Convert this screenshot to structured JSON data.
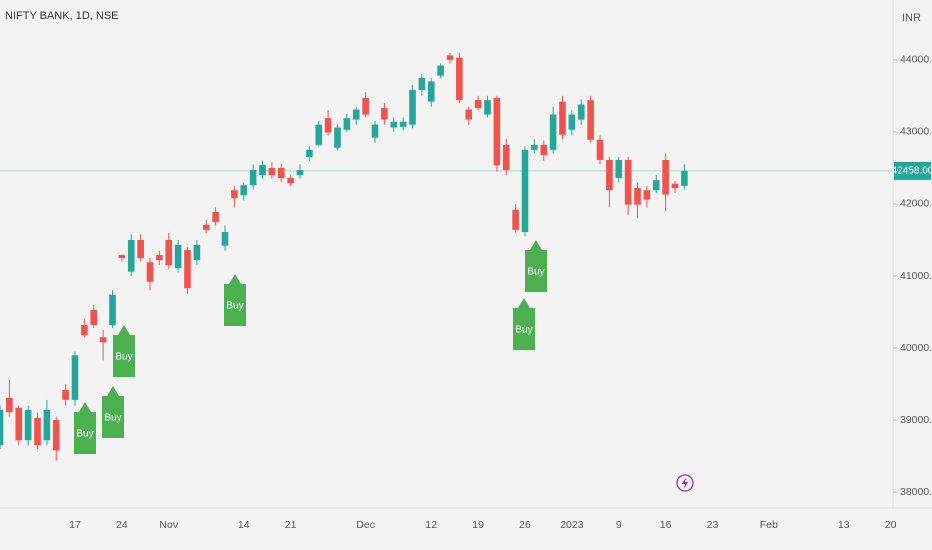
{
  "chart_data": {
    "type": "candlestick",
    "title": "NIFTY BANK, 1D, NSE",
    "y_unit": "INR",
    "categories": [
      null,
      null,
      null,
      null,
      null,
      null,
      null,
      null,
      "17",
      null,
      null,
      null,
      null,
      "24",
      null,
      null,
      null,
      null,
      "Nov",
      null,
      null,
      null,
      null,
      null,
      null,
      null,
      "14",
      null,
      null,
      null,
      null,
      "21",
      null,
      null,
      null,
      null,
      null,
      null,
      null,
      "Dec",
      null,
      null,
      null,
      null,
      null,
      null,
      "12",
      null,
      null,
      null,
      null,
      "19",
      null,
      null,
      null,
      null,
      "26",
      null,
      null,
      null,
      null,
      "2023",
      null,
      null,
      null,
      null,
      "9",
      null,
      null,
      null,
      null,
      "16",
      null,
      null,
      null,
      null,
      "23",
      null,
      null,
      null,
      null,
      null,
      "Feb",
      null,
      null,
      null,
      null,
      null,
      null,
      null,
      "13",
      null,
      null,
      null,
      null,
      "20"
    ],
    "open": [
      38650,
      39310,
      39170,
      38720,
      39030,
      38720,
      39000,
      39420,
      39280,
      40320,
      40530,
      40150,
      40320,
      41290,
      41060,
      41500,
      41190,
      41290,
      41500,
      41110,
      41360,
      41220,
      41710,
      41890,
      41420,
      42190,
      42120,
      42260,
      42400,
      42500,
      42500,
      42360,
      42400,
      42650,
      42820,
      43190,
      42780,
      43030,
      43170,
      43470,
      42920,
      43330,
      43060,
      43070,
      43100,
      43580,
      43420,
      43780,
      44060,
      44030,
      43310,
      43440,
      43240,
      43470,
      42820,
      41920,
      41610,
      42750,
      42820,
      42750,
      43420,
      43030,
      43170,
      43440,
      42890,
      42610,
      42360,
      42610,
      42220,
      42190,
      42190,
      42610,
      42280,
      42250,
      null,
      null,
      null,
      null,
      null,
      null,
      null,
      null,
      null,
      null,
      null,
      null,
      null,
      null,
      null,
      null,
      null,
      null,
      null,
      null,
      null,
      null
    ],
    "high": [
      39200,
      39560,
      39200,
      39200,
      39100,
      39280,
      39050,
      39500,
      39950,
      40400,
      40600,
      40250,
      40800,
      41300,
      41580,
      41580,
      41250,
      41350,
      41600,
      41500,
      41400,
      41500,
      41780,
      41950,
      41700,
      42250,
      42300,
      42550,
      42600,
      42580,
      42560,
      42400,
      42550,
      42800,
      43150,
      43300,
      43100,
      43250,
      43350,
      43550,
      43150,
      43400,
      43200,
      43200,
      43650,
      43800,
      43750,
      43950,
      44100,
      44100,
      43350,
      43500,
      43500,
      43500,
      42900,
      42000,
      42800,
      42900,
      42880,
      43350,
      43500,
      43300,
      43450,
      43500,
      42950,
      42650,
      42650,
      42650,
      42300,
      42250,
      42400,
      42700,
      42320,
      42550,
      null,
      null,
      null,
      null,
      null,
      null,
      null,
      null,
      null,
      null,
      null,
      null,
      null,
      null,
      null,
      null,
      null,
      null,
      null,
      null,
      null,
      null
    ],
    "low": [
      38600,
      39050,
      38650,
      38650,
      38600,
      38650,
      38440,
      39200,
      39200,
      40150,
      40280,
      39830,
      40280,
      41200,
      41000,
      41200,
      40800,
      41150,
      41100,
      41050,
      40750,
      41150,
      41600,
      41700,
      41350,
      41950,
      42050,
      42200,
      42350,
      42350,
      42300,
      42250,
      42350,
      42600,
      42800,
      42950,
      42750,
      43000,
      43100,
      43200,
      42850,
      43100,
      43000,
      43020,
      43050,
      43500,
      43350,
      43750,
      43950,
      43400,
      43100,
      43300,
      43200,
      42450,
      42400,
      41600,
      41550,
      42700,
      42600,
      42700,
      42900,
      42950,
      43100,
      42850,
      42550,
      41950,
      42300,
      41850,
      41800,
      41950,
      42150,
      41900,
      42150,
      42200,
      null,
      null,
      null,
      null,
      null,
      null,
      null,
      null,
      null,
      null,
      null,
      null,
      null,
      null,
      null,
      null,
      null,
      null,
      null,
      null,
      null,
      null
    ],
    "close": [
      39140,
      39110,
      38720,
      39140,
      38650,
      39140,
      38580,
      39280,
      39900,
      40180,
      40320,
      40080,
      40740,
      41250,
      41500,
      41250,
      40920,
      41220,
      41150,
      41430,
      40830,
      41430,
      41640,
      41750,
      41610,
      42080,
      42260,
      42470,
      42540,
      42400,
      42360,
      42290,
      42470,
      42750,
      43100,
      42990,
      43060,
      43190,
      43310,
      43240,
      43100,
      43170,
      43140,
      43140,
      43580,
      43750,
      43700,
      43920,
      44000,
      43440,
      43170,
      43330,
      43440,
      42540,
      42470,
      41640,
      42750,
      42820,
      42680,
      43240,
      42960,
      43240,
      43380,
      42890,
      42610,
      42190,
      42610,
      41990,
      41990,
      42060,
      42330,
      42130,
      42220,
      42458,
      null,
      null,
      null,
      null,
      null,
      null,
      null,
      null,
      null,
      null,
      null,
      null,
      null,
      null,
      null,
      null,
      null,
      null,
      null,
      null,
      null,
      null
    ],
    "up_color": "#26a69a",
    "down_color": "#ef5350",
    "ylim": [
      37780,
      44830
    ],
    "yticks": [
      {
        "value": 38000,
        "label": "38000.00"
      },
      {
        "value": 39000,
        "label": "39000.00"
      },
      {
        "value": 40000,
        "label": "40000.00"
      },
      {
        "value": 41000,
        "label": "41000.00"
      },
      {
        "value": 42000,
        "label": "42000.00"
      },
      {
        "value": 43000,
        "label": "43000.00"
      },
      {
        "value": 44000,
        "label": "44000.00"
      }
    ],
    "last_price": {
      "value": 42458,
      "label": "42458.00"
    },
    "annotations": [
      "Buy",
      "Buy",
      "Buy",
      "Buy",
      "Buy",
      "Buy"
    ]
  }
}
